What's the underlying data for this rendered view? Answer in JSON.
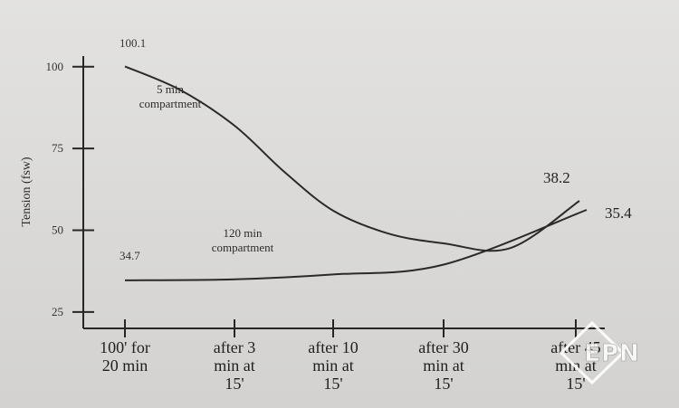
{
  "chart_data": {
    "type": "line",
    "ylabel": "Tension (fsw)",
    "ylim": [
      20,
      110
    ],
    "yticks": [
      25,
      50,
      75,
      100
    ],
    "categories": [
      "100' for\n20 min",
      "after 3\nmin at\n15'",
      "after 10\nmin at\n15'",
      "after 30\nmin at\n15'",
      "after 45\nmin at\n15'"
    ],
    "series": [
      {
        "name": "5 min compartment",
        "label": [
          "5 min",
          "compartment"
        ],
        "x": [
          0,
          0.5,
          1,
          1.5,
          2,
          2.5,
          3,
          3.5,
          4
        ],
        "values": [
          100.1,
          93,
          82,
          68,
          56,
          49,
          46,
          44.5,
          38.2
        ],
        "start_label": "100.1",
        "end_label": "38.2"
      },
      {
        "name": "120 min compartment",
        "label": [
          "120 min",
          "compartment"
        ],
        "x": [
          0,
          1,
          2,
          3,
          4
        ],
        "values": [
          34.7,
          35,
          36.5,
          39.5,
          35.4
        ],
        "start_label": "34.7",
        "end_label": "35.4"
      }
    ],
    "grid": false,
    "legend": "none"
  },
  "watermark": {
    "text": "EPN"
  }
}
